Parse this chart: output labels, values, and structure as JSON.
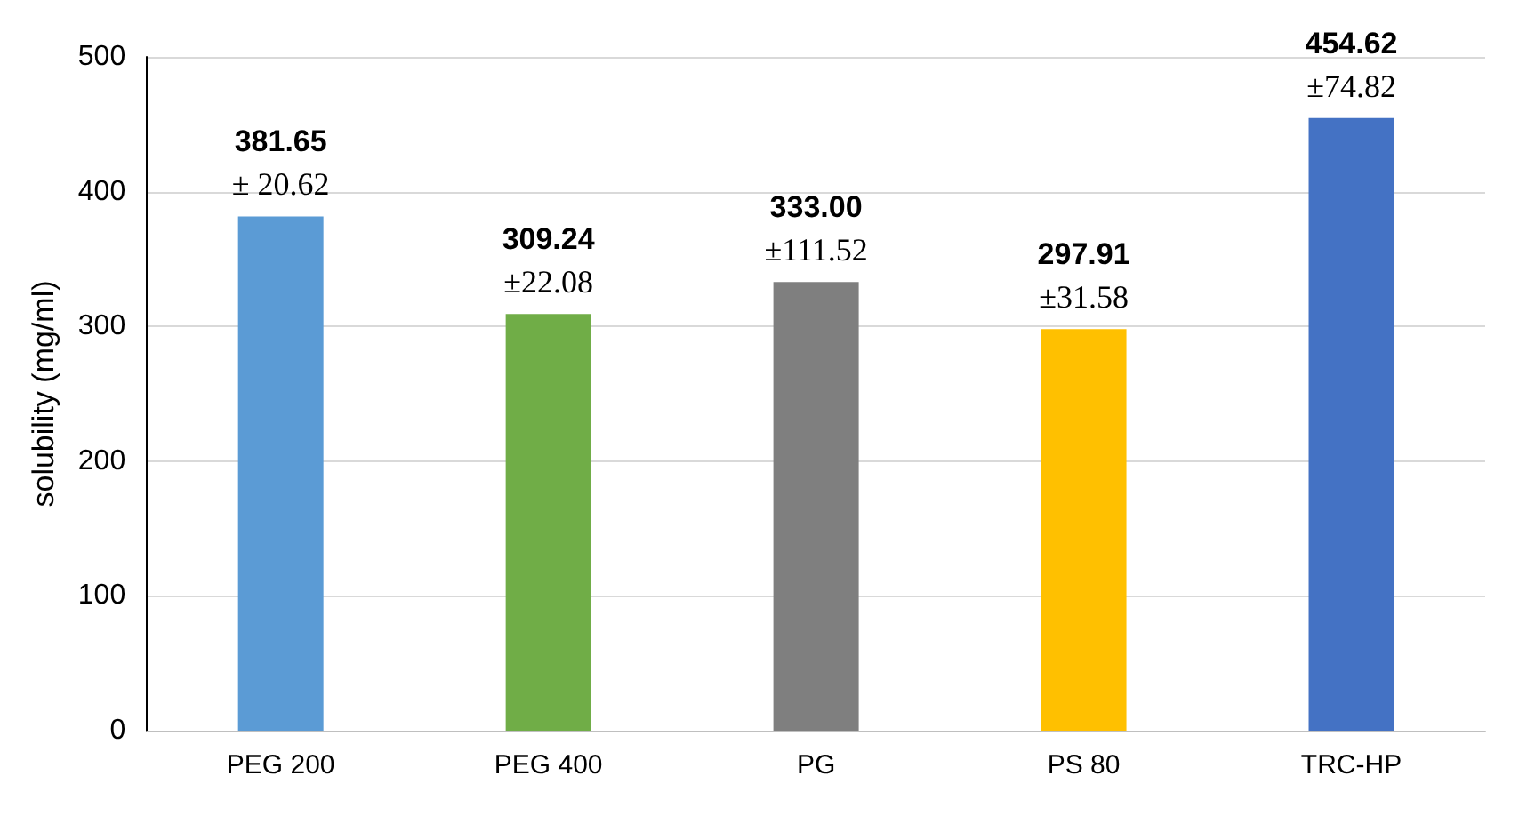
{
  "chart_data": {
    "type": "bar",
    "ylabel": "solubility (mg/ml)",
    "categories": [
      "PEG 200",
      "PEG 400",
      "PG",
      "PS 80",
      "TRC-HP"
    ],
    "values": [
      381.65,
      309.24,
      333.0,
      297.91,
      454.62
    ],
    "colors": [
      "#5b9bd5",
      "#70ad47",
      "#7f7f7f",
      "#ffc000",
      "#4472c4"
    ],
    "value_labels": [
      "381.65\n± 20.62",
      "309.24\n±22.08",
      "333.00\n±111.52",
      "297.91\n±31.58",
      "454.62\n±74.82"
    ],
    "ylim": [
      0,
      500
    ],
    "yticks": [
      0,
      100,
      200,
      300,
      400,
      500
    ],
    "grid": "y"
  }
}
